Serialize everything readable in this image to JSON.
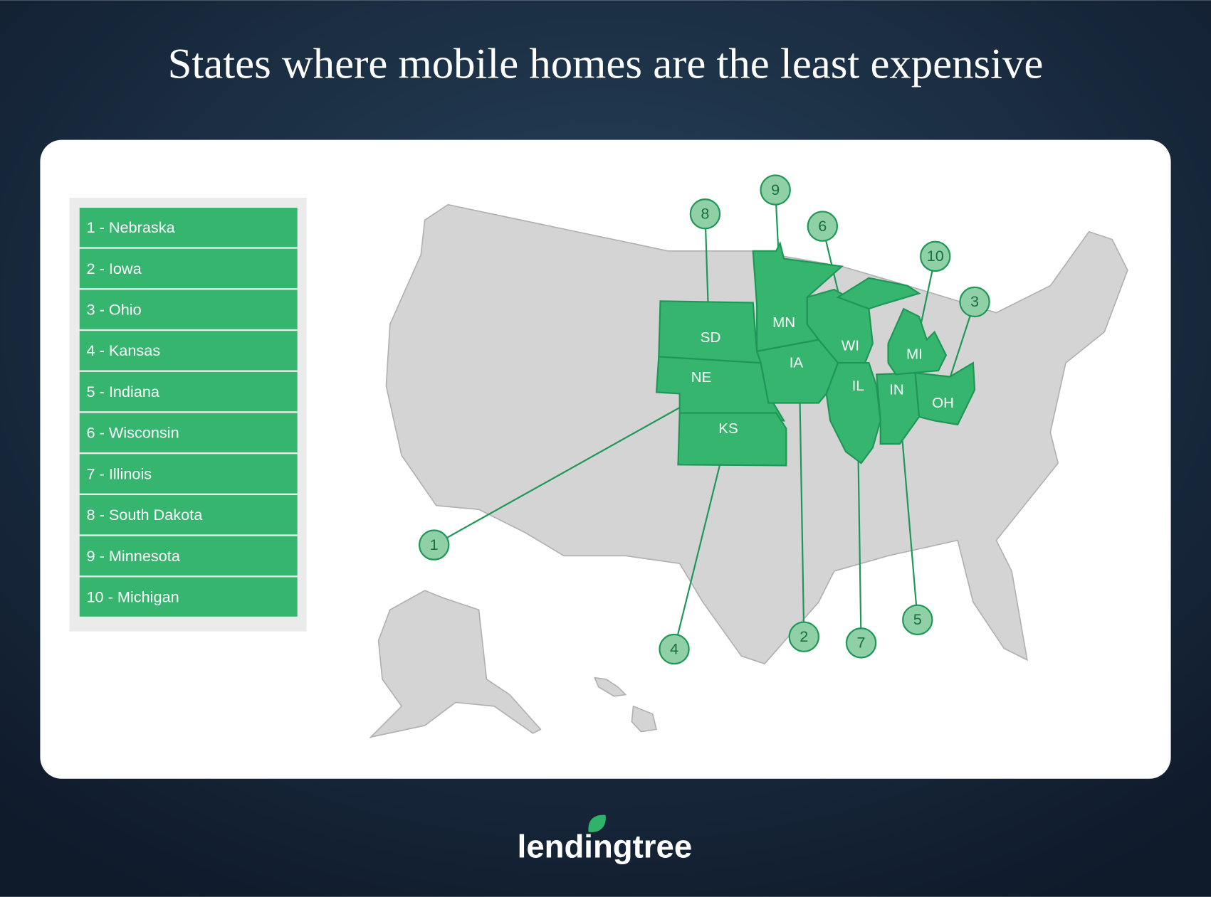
{
  "title": "States where mobile homes are the least expensive",
  "legend": {
    "items": [
      "1 - Nebraska",
      "2 - Iowa",
      "3 - Ohio",
      "4 - Kansas",
      "5 - Indiana",
      "6 - Wisconsin",
      "7 - Illinois",
      "8 - South Dakota",
      "9 - Minnesota",
      "10 - Michigan"
    ]
  },
  "map": {
    "states": [
      {
        "abbr": "NE",
        "rank": 1
      },
      {
        "abbr": "IA",
        "rank": 2
      },
      {
        "abbr": "OH",
        "rank": 3
      },
      {
        "abbr": "KS",
        "rank": 4
      },
      {
        "abbr": "IN",
        "rank": 5
      },
      {
        "abbr": "WI",
        "rank": 6
      },
      {
        "abbr": "IL",
        "rank": 7
      },
      {
        "abbr": "SD",
        "rank": 8
      },
      {
        "abbr": "MN",
        "rank": 9
      },
      {
        "abbr": "MI",
        "rank": 10
      }
    ]
  },
  "logo": "lendingtree"
}
